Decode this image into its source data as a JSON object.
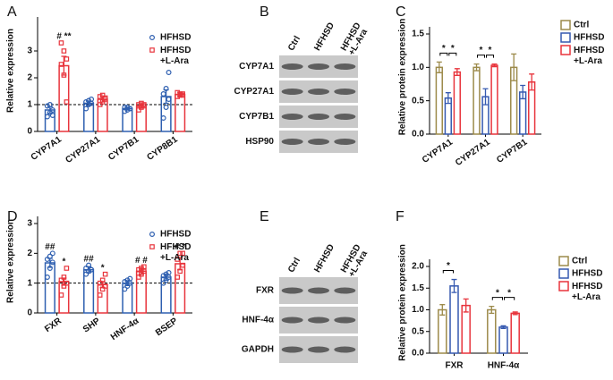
{
  "chart_data": [
    {
      "type": "bar",
      "label": "A",
      "ylabel": "Relative expression",
      "categories": [
        "CYP7A1",
        "CYP27A1",
        "CYP7B1",
        "CYP8B1"
      ],
      "ylim": [
        0,
        4
      ],
      "yticks": [
        0,
        1,
        2,
        3
      ],
      "reference_line": 1,
      "series": [
        {
          "name": "HFHSD",
          "color": "#2e5fb0",
          "marker": "circle",
          "values": [
            0.8,
            1.05,
            0.85,
            1.3
          ],
          "error": [
            0.12,
            0.08,
            0.05,
            0.25
          ],
          "significance": [
            null,
            null,
            null,
            null
          ],
          "points": [
            [
              0.55,
              0.7,
              0.8,
              0.95,
              1.0,
              0.6
            ],
            [
              0.85,
              1.0,
              1.05,
              1.1,
              1.15,
              1.2
            ],
            [
              0.75,
              0.8,
              0.85,
              0.9,
              0.9,
              0.85
            ],
            [
              0.5,
              0.9,
              1.2,
              1.4,
              1.6,
              2.2
            ]
          ]
        },
        {
          "name": "HFHSD +L-Ara",
          "color": "#e8343c",
          "marker": "square",
          "values": [
            2.45,
            1.2,
            0.95,
            1.38
          ],
          "error": [
            0.35,
            0.1,
            0.07,
            0.08
          ],
          "significance": [
            "# **",
            null,
            null,
            null
          ],
          "points": [
            [
              3.3,
              3.0,
              2.7,
              2.5,
              2.1,
              1.1
            ],
            [
              1.0,
              1.1,
              1.2,
              1.3,
              1.35,
              1.25
            ],
            [
              0.8,
              0.9,
              0.95,
              1.0,
              1.05,
              1.0
            ],
            [
              1.3,
              1.35,
              1.4,
              1.45,
              1.4,
              1.35
            ]
          ]
        }
      ]
    },
    {
      "type": "bar",
      "label": "C",
      "ylabel": "Relative protein expression",
      "categories": [
        "CYP7A1",
        "CYP27A1",
        "CYP7B1"
      ],
      "ylim": [
        0,
        1.5
      ],
      "yticks": [
        {
          "value": 0,
          "label": "0.0"
        },
        {
          "value": 0.5,
          "label": "0.5"
        },
        {
          "value": 1,
          "label": "1.0"
        },
        {
          "value": 1.5,
          "label": "1.5"
        }
      ],
      "series": [
        {
          "name": "Ctrl",
          "color": "#9c8a4a",
          "values": [
            1.0,
            1.0,
            1.0
          ],
          "error": [
            0.08,
            0.05,
            0.2
          ]
        },
        {
          "name": "HFHSD",
          "color": "#3559b0",
          "values": [
            0.54,
            0.56,
            0.63
          ],
          "error": [
            0.08,
            0.12,
            0.1
          ]
        },
        {
          "name": "HFHSD +L-Ara",
          "color": "#e8343c",
          "values": [
            0.93,
            1.03,
            0.78
          ],
          "error": [
            0.05,
            0.02,
            0.12
          ]
        }
      ],
      "brackets": [
        {
          "category": "CYP7A1",
          "pair": [
            "Ctrl",
            "HFHSD"
          ],
          "label": "*"
        },
        {
          "category": "CYP7A1",
          "pair": [
            "HFHSD",
            "HFHSD +L-Ara"
          ],
          "label": "*"
        },
        {
          "category": "CYP27A1",
          "pair": [
            "Ctrl",
            "HFHSD"
          ],
          "label": "*"
        },
        {
          "category": "CYP27A1",
          "pair": [
            "HFHSD",
            "HFHSD +L-Ara"
          ],
          "label": "*"
        }
      ]
    },
    {
      "type": "bar",
      "label": "D",
      "ylabel": "Relative expression",
      "categories": [
        "FXR",
        "SHP",
        "HNF-4α",
        "BSEP"
      ],
      "ylim": [
        0,
        3
      ],
      "yticks": [
        0,
        1,
        2,
        3
      ],
      "reference_line": 1,
      "series": [
        {
          "name": "HFHSD",
          "color": "#2e5fb0",
          "marker": "circle",
          "values": [
            1.68,
            1.45,
            1.0,
            1.2
          ],
          "error": [
            0.15,
            0.1,
            0.08,
            0.1
          ],
          "significance": [
            "##",
            "##",
            null,
            null
          ],
          "points": [
            [
              1.2,
              1.5,
              1.7,
              1.8,
              1.9,
              2.0
            ],
            [
              1.3,
              1.4,
              1.45,
              1.5,
              1.6,
              1.45
            ],
            [
              0.8,
              0.9,
              1.0,
              1.05,
              1.1,
              1.15
            ],
            [
              1.0,
              1.1,
              1.2,
              1.25,
              1.3,
              1.35
            ]
          ]
        },
        {
          "name": "HFHSD +L-Ara",
          "color": "#e8343c",
          "marker": "square",
          "values": [
            1.05,
            0.95,
            1.4,
            1.65
          ],
          "error": [
            0.12,
            0.1,
            0.1,
            0.2
          ],
          "significance": [
            "*",
            "*",
            "# #",
            "# *"
          ],
          "points": [
            [
              0.6,
              0.9,
              1.0,
              1.1,
              1.2,
              1.5
            ],
            [
              0.6,
              0.8,
              0.9,
              1.0,
              1.1,
              1.3
            ],
            [
              1.2,
              1.3,
              1.4,
              1.45,
              1.5,
              1.55
            ],
            [
              1.2,
              1.4,
              1.6,
              1.8,
              2.0,
              2.0
            ]
          ]
        }
      ]
    },
    {
      "type": "bar",
      "label": "F",
      "ylabel": "Relative protein expression",
      "categories": [
        "FXR",
        "HNF-4α"
      ],
      "ylim": [
        0,
        2
      ],
      "yticks": [
        {
          "value": 0,
          "label": "0.0"
        },
        {
          "value": 0.5,
          "label": "0.5"
        },
        {
          "value": 1,
          "label": "1.0"
        },
        {
          "value": 1.5,
          "label": "1.5"
        },
        {
          "value": 2,
          "label": "2.0"
        }
      ],
      "series": [
        {
          "name": "Ctrl",
          "color": "#9c8a4a",
          "values": [
            1.0,
            1.0
          ],
          "error": [
            0.12,
            0.08
          ]
        },
        {
          "name": "HFHSD",
          "color": "#3559b0",
          "values": [
            1.55,
            0.6
          ],
          "error": [
            0.15,
            0.03
          ]
        },
        {
          "name": "HFHSD +L-Ara",
          "color": "#e8343c",
          "values": [
            1.1,
            0.92
          ],
          "error": [
            0.15,
            0.03
          ]
        }
      ],
      "brackets": [
        {
          "category": "FXR",
          "pair": [
            "Ctrl",
            "HFHSD"
          ],
          "label": "*"
        },
        {
          "category": "HNF-4α",
          "pair": [
            "Ctrl",
            "HFHSD"
          ],
          "label": "*"
        },
        {
          "category": "HNF-4α",
          "pair": [
            "HFHSD",
            "HFHSD +L-Ara"
          ],
          "label": "*"
        }
      ]
    }
  ],
  "blots": [
    {
      "label": "B",
      "lanes": [
        "Ctrl",
        "HFHSD",
        "HFHSD +L-Ara"
      ],
      "rows": [
        "CYP7A1",
        "CYP27A1",
        "CYP7B1",
        "HSP90"
      ]
    },
    {
      "label": "E",
      "lanes": [
        "Ctrl",
        "HFHSD",
        "HFHSD +L-Ara"
      ],
      "rows": [
        "FXR",
        "HNF-4α",
        "GAPDH"
      ]
    }
  ]
}
